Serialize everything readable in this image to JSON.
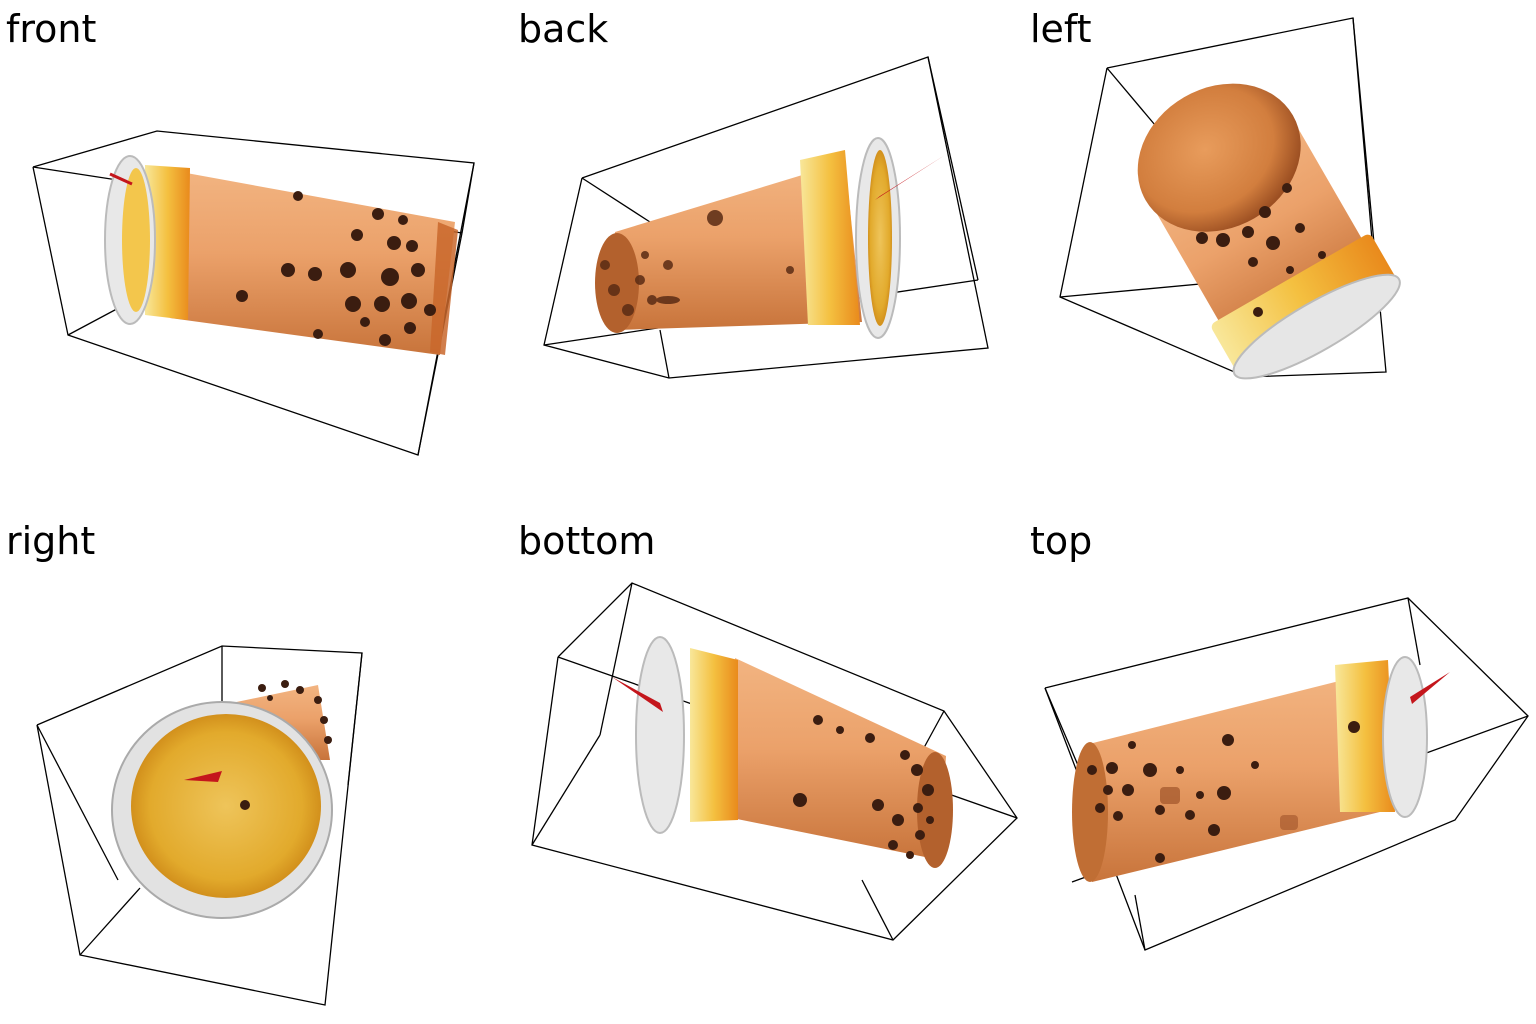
{
  "views": [
    {
      "key": "front",
      "label": "front"
    },
    {
      "key": "back",
      "label": "back"
    },
    {
      "key": "left",
      "label": "left"
    },
    {
      "key": "right",
      "label": "right"
    },
    {
      "key": "bottom",
      "label": "bottom"
    },
    {
      "key": "top",
      "label": "top"
    }
  ],
  "colors": {
    "background": "#ffffff",
    "label_text": "#000000",
    "bbox_line": "#000000",
    "cup_body": "#eba16a",
    "cup_body_shade": "#b8602a",
    "cup_body_light": "#f7c9a0",
    "rim_band": "#f2a81e",
    "rim_band_light": "#f8e79a",
    "lid_rim": "#d9d9d9",
    "lid_inner": "#e6b440",
    "pearl": "#3b1d10",
    "straw": "#c4161c"
  }
}
